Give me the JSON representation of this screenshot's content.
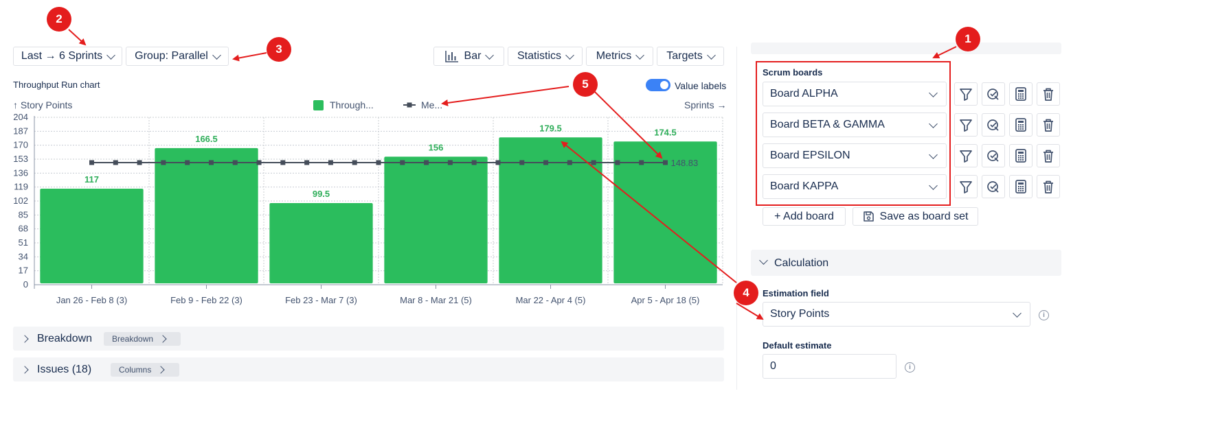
{
  "toolbar": {
    "range_label": "Last → 6 Sprints",
    "group_label": "Group: Parallel",
    "bar_label": "Bar",
    "statistics_label": "Statistics",
    "metrics_label": "Metrics",
    "targets_label": "Targets"
  },
  "chart_title": "Throughput Run chart",
  "value_labels_toggle": {
    "label": "Value labels",
    "on": true
  },
  "colors": {
    "bar": "#2bbd5d",
    "mean_line": "#454d5a",
    "label_green": "#2fae5a",
    "accent": "#3b82f6",
    "annotation_red": "#e41d1d"
  },
  "chart_data": {
    "type": "bar",
    "title": "Throughput Run chart",
    "ylabel": "↑ Story Points",
    "xlabel": "Sprints →",
    "categories": [
      "Jan 26 - Feb 8 (3)",
      "Feb 9 - Feb 22 (3)",
      "Feb 23 - Mar 7 (3)",
      "Mar 8 - Mar 21 (5)",
      "Mar 22 - Apr 4 (5)",
      "Apr 5 - Apr 18 (5)"
    ],
    "series": [
      {
        "name": "Through...",
        "kind": "bar",
        "values": [
          117,
          166.5,
          99.5,
          156,
          179.5,
          174.5
        ]
      },
      {
        "name": "Me...",
        "kind": "line",
        "value": 148.83
      }
    ],
    "mean_label": "148.83",
    "value_labels": [
      "117",
      "166.5",
      "99.5",
      "156",
      "179.5",
      "174.5"
    ],
    "yticks": [
      "0",
      "17",
      "34",
      "51",
      "68",
      "85",
      "102",
      "119",
      "136",
      "153",
      "170",
      "187",
      "204"
    ],
    "ylim": [
      0,
      204
    ],
    "grid": true,
    "legend_position": "top-center"
  },
  "sections": {
    "breakdown": {
      "title": "Breakdown",
      "tag": "Breakdown"
    },
    "issues": {
      "title": "Issues (18)",
      "tag": "Columns"
    }
  },
  "sidebar": {
    "scrum_boards_label": "Scrum boards",
    "boards": [
      {
        "name": "Board ALPHA"
      },
      {
        "name": "Board BETA & GAMMA"
      },
      {
        "name": "Board EPSILON"
      },
      {
        "name": "Board KAPPA"
      }
    ],
    "board_actions": [
      "filter-icon",
      "estimate-check-icon",
      "calculator-icon",
      "trash-icon"
    ],
    "add_board_label": "+ Add board",
    "save_board_set_label": "Save as board set",
    "calculation_title": "Calculation",
    "estimation_field_label": "Estimation field",
    "estimation_field_value": "Story Points",
    "default_estimate_label": "Default estimate",
    "default_estimate_value": "0"
  },
  "annotations": [
    "1",
    "2",
    "3",
    "4",
    "5"
  ]
}
